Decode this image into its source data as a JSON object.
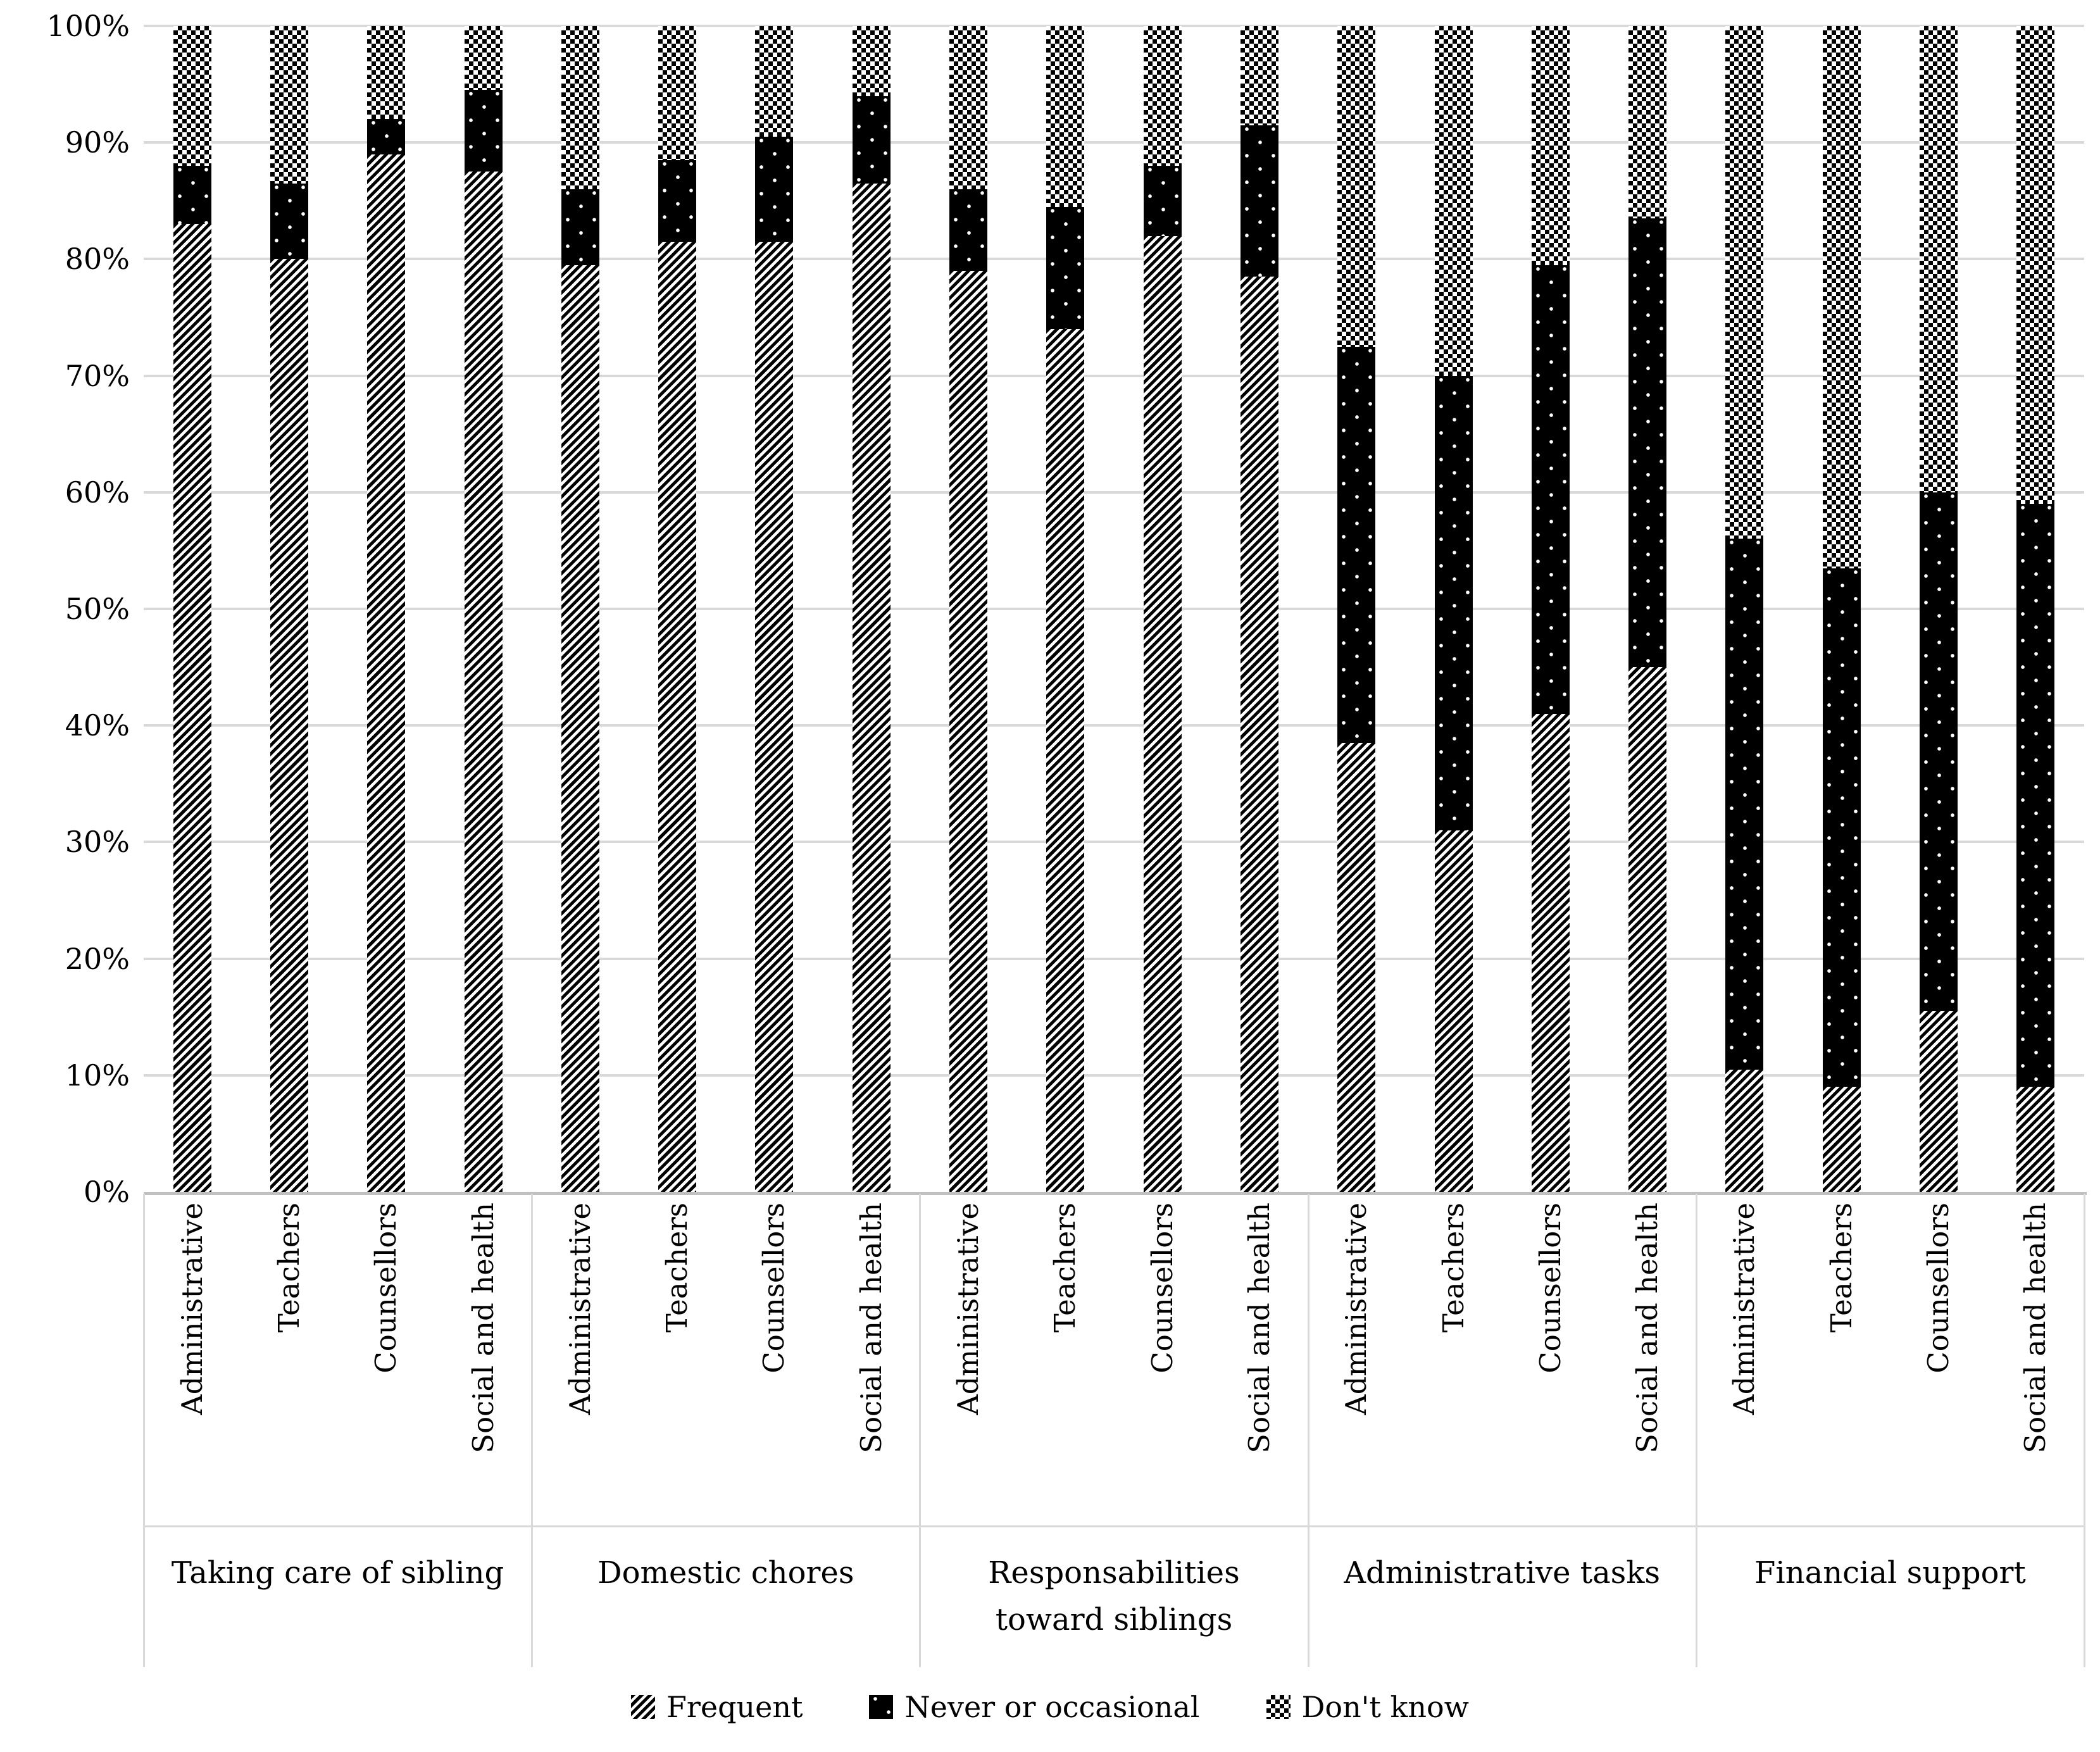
{
  "colors": {
    "background": "#ffffff",
    "gridline": "#d9d9d9",
    "axis_line": "#c0c0c0",
    "separator": "#d9d9d9",
    "bar_ink": "#000000",
    "text": "#000000"
  },
  "chart_data": {
    "type": "bar",
    "stacked": true,
    "percent_stacked": true,
    "title": "",
    "xlabel": "",
    "ylabel": "",
    "ylim": [
      0,
      100
    ],
    "grid": true,
    "legend_position": "bottom",
    "y_ticks": [
      "0%",
      "10%",
      "20%",
      "30%",
      "40%",
      "50%",
      "60%",
      "70%",
      "80%",
      "90%",
      "100%"
    ],
    "groups": [
      "Taking care of sibling",
      "Domestic chores",
      "Responsabilities\ntoward siblings",
      "Administrative tasks",
      "Financial support"
    ],
    "bars_per_group": [
      "Administrative",
      "Teachers",
      "Counsellors",
      "Social and health"
    ],
    "series": [
      {
        "name": "Frequent",
        "pattern": "diagonal-hatch",
        "values": [
          [
            83,
            80,
            89,
            87.5
          ],
          [
            79.5,
            81.5,
            81.5,
            86.5
          ],
          [
            79,
            74,
            82,
            78.5
          ],
          [
            38.5,
            31,
            41,
            45
          ],
          [
            10.5,
            9,
            15.5,
            9
          ]
        ]
      },
      {
        "name": "Never or occasional",
        "pattern": "black-with-white-dots",
        "values": [
          [
            5,
            6.5,
            3,
            7
          ],
          [
            6.5,
            7,
            9,
            7.5
          ],
          [
            7,
            10.5,
            6,
            13
          ],
          [
            34,
            39,
            38.5,
            38.5
          ],
          [
            45.5,
            44.5,
            44.5,
            50
          ]
        ]
      },
      {
        "name": "Don't know",
        "pattern": "checkerboard",
        "values": [
          [
            12,
            13.5,
            8,
            5.5
          ],
          [
            14,
            11.5,
            9.5,
            6
          ],
          [
            14,
            15.5,
            12,
            8.5
          ],
          [
            27.5,
            30,
            20.5,
            16.5
          ],
          [
            44,
            46.5,
            40,
            41
          ]
        ]
      }
    ]
  }
}
